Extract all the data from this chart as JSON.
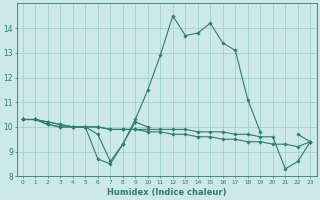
{
  "title": "",
  "xlabel": "Humidex (Indice chaleur)",
  "ylabel": "",
  "background_color": "#cce8e8",
  "grid_color": "#99cccc",
  "line_color": "#2e7b70",
  "xlim": [
    -0.5,
    23.5
  ],
  "ylim": [
    8,
    15
  ],
  "yticks": [
    8,
    9,
    10,
    11,
    12,
    13,
    14
  ],
  "xticks": [
    0,
    1,
    2,
    3,
    4,
    5,
    6,
    7,
    8,
    9,
    10,
    11,
    12,
    13,
    14,
    15,
    16,
    17,
    18,
    19,
    20,
    21,
    22,
    23
  ],
  "lines": [
    {
      "x": [
        0,
        1,
        2,
        3,
        4,
        5,
        6,
        7,
        8,
        9,
        10,
        11,
        12,
        13,
        14,
        15,
        16,
        17,
        18,
        19,
        20,
        21,
        22,
        23
      ],
      "y": [
        10.3,
        10.3,
        10.2,
        10.1,
        10.0,
        10.0,
        9.7,
        8.6,
        9.3,
        10.3,
        11.5,
        12.9,
        14.5,
        13.7,
        13.8,
        14.2,
        13.4,
        13.1,
        11.1,
        9.8,
        null,
        null,
        9.7,
        9.4
      ]
    },
    {
      "x": [
        0,
        1,
        2,
        3,
        4,
        5,
        6,
        7,
        8,
        9,
        10
      ],
      "y": [
        10.3,
        10.3,
        10.2,
        10.1,
        10.0,
        10.0,
        8.7,
        8.5,
        9.3,
        10.2,
        10.0
      ]
    },
    {
      "x": [
        0,
        1,
        2,
        3,
        4,
        5,
        6,
        7,
        8,
        9,
        10,
        11,
        12,
        13,
        14,
        15,
        16,
        17,
        18,
        19,
        20,
        21,
        22,
        23
      ],
      "y": [
        10.3,
        10.3,
        10.1,
        10.0,
        10.0,
        10.0,
        10.0,
        9.9,
        9.9,
        9.9,
        9.9,
        9.9,
        9.9,
        9.9,
        9.8,
        9.8,
        9.8,
        9.7,
        9.7,
        9.6,
        9.6,
        8.3,
        8.6,
        9.4
      ]
    },
    {
      "x": [
        0,
        1,
        2,
        3,
        4,
        5,
        6,
        7,
        8,
        9,
        10,
        11,
        12,
        13,
        14,
        15,
        16,
        17,
        18,
        19,
        20,
        21,
        22,
        23
      ],
      "y": [
        10.3,
        10.3,
        10.1,
        10.0,
        10.0,
        10.0,
        10.0,
        9.9,
        9.9,
        9.9,
        9.8,
        9.8,
        9.7,
        9.7,
        9.6,
        9.6,
        9.5,
        9.5,
        9.4,
        9.4,
        9.3,
        9.3,
        9.2,
        9.4
      ]
    }
  ]
}
